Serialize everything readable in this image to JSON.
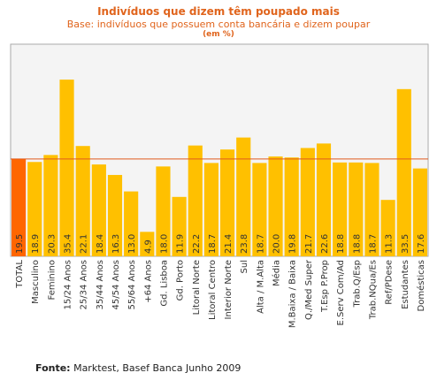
{
  "chart_data": {
    "type": "bar",
    "title": "Indivíduos que dizem têm poupado mais",
    "subtitle": "Base: indivíduos que possuem conta bancária e dizem poupar",
    "unit": "(em %)",
    "categories": [
      "TOTAL",
      "Masculino",
      "Feminino",
      "15/24 Anos",
      "25/34 Anos",
      "35/44 Anos",
      "45/54 Anos",
      "55/64 Anos",
      "+64 Anos",
      "Gd. Lisboa",
      "Gd. Porto",
      "Litoral Norte",
      "Litoral Centro",
      "Interior Norte",
      "Sul",
      "Alta / M.Alta",
      "Média",
      "M.Baixa / Baixa",
      "Q./Med Super",
      "T.Esp P.Prop",
      "E.Serv Com/Ad",
      "Trab.Q/Esp",
      "Trab.NQua/Es",
      "Ref/PDese",
      "Estudantes",
      "Domésticas"
    ],
    "values": [
      19.5,
      18.9,
      20.3,
      35.4,
      22.1,
      18.4,
      16.3,
      13.0,
      4.9,
      18.0,
      11.9,
      22.2,
      18.7,
      21.4,
      23.8,
      18.7,
      20.0,
      19.8,
      21.7,
      22.6,
      18.8,
      18.8,
      18.7,
      11.3,
      33.5,
      17.6
    ],
    "value_labels": [
      "19.5",
      "18.9",
      "20.3",
      "35.4",
      "22.1",
      "18.4",
      "16.3",
      "13.0",
      "4.9",
      "18.0",
      "11.9",
      "22.2",
      "18.7",
      "21.4",
      "23.8",
      "18.7",
      "20.0",
      "19.8",
      "21.7",
      "22.6",
      "18.8",
      "18.8",
      "18.7",
      "11.3",
      "33.5",
      "17.6"
    ],
    "reference_line": 19.5,
    "ylim": [
      0,
      42.5
    ],
    "highlight_index": 0,
    "colors": {
      "bar": "#ffc000",
      "highlight": "#ff6600",
      "reference_line": "#e05a1e",
      "plot_bg": "#f4f4f4",
      "plot_border": "#aaaaaa",
      "text": "#333333"
    }
  },
  "source": {
    "label": "Fonte:",
    "text": "Marktest, Basef Banca Junho 2009"
  }
}
